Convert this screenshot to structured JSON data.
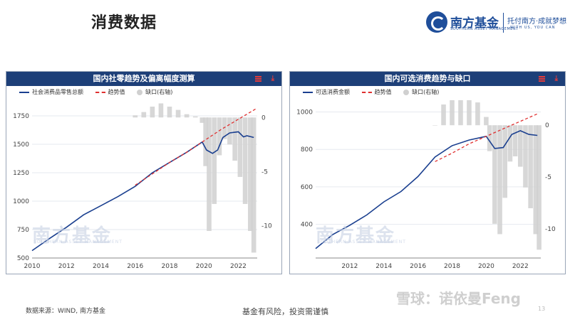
{
  "page": {
    "title": "消费数据"
  },
  "logo": {
    "name": "南方基金",
    "name_en": "SOUTHERN ASSET MANAGEMENT",
    "slogan": "托付南方·成就梦想",
    "slogan_en": "WITH US, YOU CAN"
  },
  "footer": {
    "source": "数据来源：WIND, 南方基金",
    "risk": "基金有风险，投资需谨慎",
    "platform_watermark": "雪球：诺依曼Feng"
  },
  "colors": {
    "header_bg": "#1d3f78",
    "actual_line": "#1a3f8f",
    "trend_line": "#e03030",
    "gap_bars": "#d0d0d0",
    "icons": "#e23b3b"
  },
  "chart_data": [
    {
      "type": "line",
      "title": "国内社零趋势及偏离幅度测算",
      "watermark": "南方基金",
      "watermark_en": "SOUTHERN ASSET MANAGEMENT",
      "legend": [
        "社会消费品零售总额",
        "趋势值",
        "缺口(右轴)"
      ],
      "icons": [
        "menu-icon",
        "download-icon"
      ],
      "xlim": [
        2010,
        2023.1
      ],
      "xticks": [
        2010,
        2012,
        2014,
        2016,
        2018,
        2020,
        2022
      ],
      "ylim_left": [
        500,
        1850
      ],
      "yticks_left": [
        500,
        750,
        1000,
        1250,
        1500,
        1750
      ],
      "ylim_right": [
        -13,
        1.2
      ],
      "yticks_right": [
        0,
        -5,
        -10
      ],
      "series": [
        {
          "name": "社会消费品零售总额",
          "axis": "left",
          "style": "solid",
          "x": [
            2010,
            2011,
            2012,
            2013,
            2014,
            2015,
            2016,
            2017,
            2018,
            2019,
            2019.9,
            2020.15,
            2020.5,
            2020.8,
            2021.1,
            2021.5,
            2022,
            2022.3,
            2022.5,
            2022.9
          ],
          "y": [
            565,
            670,
            770,
            880,
            960,
            1040,
            1130,
            1250,
            1340,
            1430,
            1520,
            1450,
            1420,
            1450,
            1560,
            1600,
            1610,
            1565,
            1575,
            1560
          ]
        },
        {
          "name": "趋势值",
          "axis": "left",
          "style": "dashed",
          "x": [
            2016,
            2017,
            2018,
            2019,
            2020,
            2021,
            2022,
            2023
          ],
          "y": [
            1140,
            1240,
            1340,
            1430,
            1530,
            1630,
            1720,
            1810
          ]
        },
        {
          "name": "缺口(右轴)",
          "axis": "right",
          "style": "bars",
          "x": [
            2016,
            2016.5,
            2017,
            2017.5,
            2018,
            2018.5,
            2019,
            2019.5,
            2019.9,
            2020.1,
            2020.3,
            2020.6,
            2020.9,
            2021.2,
            2021.5,
            2021.8,
            2022.1,
            2022.4,
            2022.7,
            2022.9
          ],
          "y": [
            0.2,
            0.5,
            1.0,
            1.3,
            1.0,
            0.7,
            0.3,
            0.1,
            -0.5,
            -4.5,
            -10.5,
            -8.0,
            -3.5,
            -2.0,
            -2.5,
            -4.0,
            -5.5,
            -8.0,
            -10.5,
            -12.5
          ]
        }
      ]
    },
    {
      "type": "line",
      "title": "国内可选消费趋势与缺口",
      "watermark": "南方基金",
      "watermark_en": "SOUTHERN ASSET MANAGEMENT",
      "legend": [
        "可选消费金额",
        "趋势值",
        "缺口(右轴)"
      ],
      "icons": [
        "menu-icon",
        "download-icon"
      ],
      "xlim": [
        2010,
        2023.2
      ],
      "xticks": [
        2012,
        2014,
        2016,
        2018,
        2020,
        2022
      ],
      "ylim_left": [
        220,
        1040
      ],
      "yticks_left": [
        400,
        600,
        800,
        1000
      ],
      "ylim_right": [
        -12.8,
        2
      ],
      "yticks_right": [
        0,
        -5,
        -10
      ],
      "series": [
        {
          "name": "可选消费金额",
          "axis": "left",
          "style": "solid",
          "x": [
            2010,
            2011,
            2012,
            2013,
            2014,
            2015,
            2016,
            2017,
            2018,
            2019,
            2020,
            2020.5,
            2021,
            2021.5,
            2022,
            2022.5,
            2023
          ],
          "y": [
            270,
            345,
            395,
            450,
            520,
            575,
            655,
            760,
            820,
            850,
            870,
            805,
            810,
            880,
            900,
            880,
            875
          ]
        },
        {
          "name": "趋势值",
          "axis": "left",
          "style": "dashed",
          "x": [
            2017,
            2018,
            2019,
            2020,
            2021,
            2022,
            2023
          ],
          "y": [
            735,
            780,
            830,
            870,
            910,
            950,
            990
          ]
        },
        {
          "name": "缺口(右轴)",
          "axis": "right",
          "style": "bars",
          "x": [
            2017,
            2017.5,
            2018,
            2018.5,
            2019,
            2019.5,
            2020,
            2020.2,
            2020.5,
            2020.8,
            2021.1,
            2021.4,
            2021.7,
            2022,
            2022.3,
            2022.6,
            2022.9,
            2023.1
          ],
          "y": [
            0,
            2.0,
            3.5,
            4.3,
            3.5,
            2.2,
            0.8,
            -2.5,
            -9.5,
            -10.5,
            -7.0,
            -3.5,
            -3.0,
            -4.0,
            -6.0,
            -8.0,
            -10.5,
            -12.0
          ]
        }
      ]
    }
  ]
}
